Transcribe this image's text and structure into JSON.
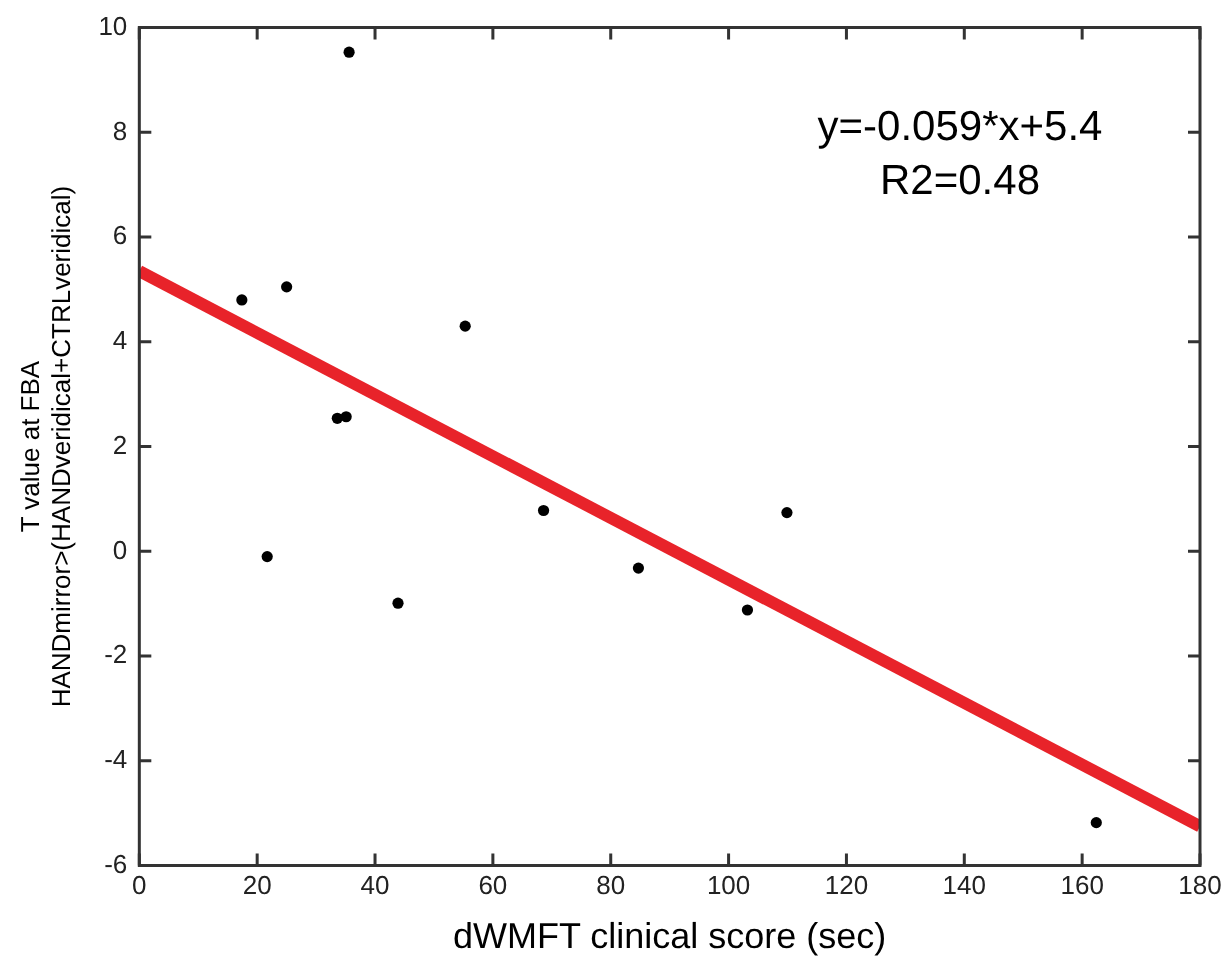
{
  "chart_data": {
    "type": "scatter",
    "xlabel": "dWMFT clinical score (sec)",
    "ylabel": "T value at FBA\nHANDmirror>(HANDveridical+CTRLveridical)",
    "annotations": [
      "y=-0.059*x+5.4",
      "R2=0.48"
    ],
    "series": [
      {
        "color": "#000000",
        "x": [
          17.4,
          21.7,
          25.0,
          33.6,
          35.1,
          35.6,
          43.9,
          55.3,
          68.6,
          84.7,
          103.2,
          109.9,
          162.4
        ],
        "values": [
          4.8,
          -0.1,
          5.05,
          2.54,
          2.57,
          9.53,
          -0.99,
          4.3,
          0.78,
          -0.32,
          -1.12,
          0.74,
          -5.18
        ]
      },
      {
        "type": "line",
        "marker": "none",
        "color": "#e8232a",
        "x": [
          0,
          180
        ],
        "values": [
          5.35,
          -5.25
        ]
      }
    ],
    "xlim": [
      0,
      180
    ],
    "xticks": [
      0,
      20,
      40,
      60,
      80,
      100,
      120,
      140,
      160,
      180
    ],
    "ylim": [
      -6,
      10
    ],
    "yticks": [
      -6,
      -4,
      -2,
      0,
      2,
      4,
      6,
      8,
      10
    ],
    "grid": false,
    "legend": false,
    "marker": "circle"
  }
}
